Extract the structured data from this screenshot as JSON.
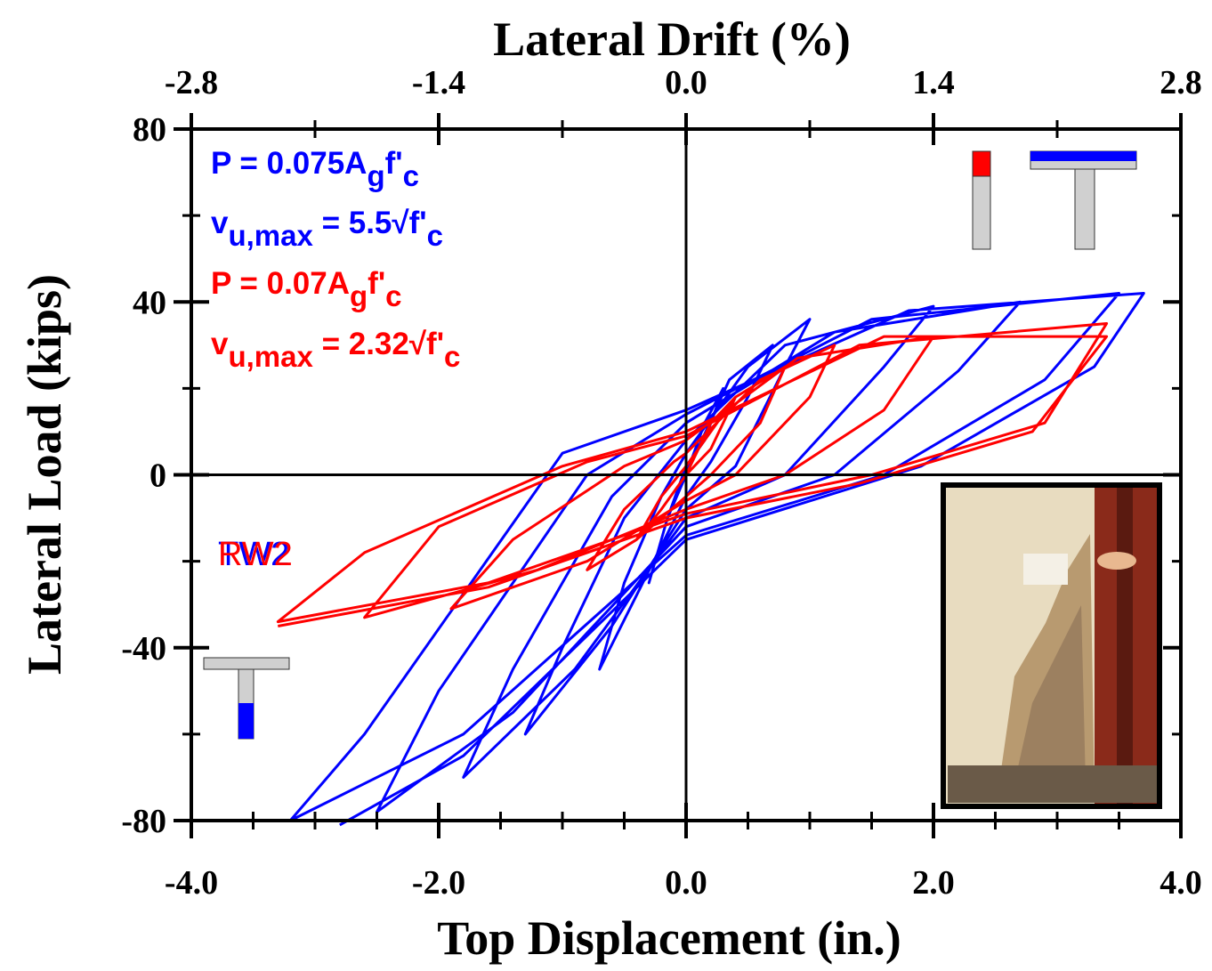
{
  "chart_data": {
    "type": "line",
    "title": "Lateral Drift (%)",
    "xlabel": "Top Displacement (in.)",
    "ylabel": "Lateral Load (kips)",
    "xlim": [
      -4,
      4
    ],
    "xticks": [
      {
        "value": -4,
        "label": "-4.0"
      },
      {
        "value": -2,
        "label": "-2.0"
      },
      {
        "value": 0,
        "label": "0.0"
      },
      {
        "value": 2,
        "label": "2.0"
      },
      {
        "value": 4,
        "label": "4.0"
      }
    ],
    "x2lim": [
      -2.8,
      2.8
    ],
    "x2ticks": [
      -2.8,
      -1.4,
      {
        "value": 0,
        "label": "0.0"
      },
      1.4,
      2.8
    ],
    "ylim": [
      -80,
      80
    ],
    "yticks": [
      -80,
      -40,
      0,
      40,
      80
    ],
    "annotations": [
      {
        "color": "#0000ff",
        "parts": [
          "P = 0.075A",
          "g",
          "f'",
          "c"
        ]
      },
      {
        "color": "#0000ff",
        "parts": [
          "v",
          "u,max",
          " =  5.5√f'",
          "c"
        ]
      },
      {
        "color": "#ff0000",
        "parts": [
          "P = 0.07A",
          "g",
          "f'",
          "c"
        ]
      },
      {
        "color": "#ff0000",
        "parts": [
          "v",
          "u,max",
          " =  2.32√f'",
          "c"
        ]
      }
    ],
    "series": [
      {
        "name": "TW2",
        "color": "#0000ff",
        "x": [
          0,
          0.15,
          0.3,
          0.15,
          0,
          -0.15,
          -0.3,
          -0.15,
          0,
          0.35,
          0.7,
          0.5,
          0.2,
          0,
          -0.35,
          -0.7,
          -0.5,
          -0.2,
          0,
          0.5,
          1.0,
          0.8,
          0.4,
          0,
          -0.6,
          -1.3,
          -1.0,
          -0.5,
          0,
          0.8,
          2.0,
          1.6,
          0.8,
          0,
          -0.9,
          -1.8,
          -1.4,
          -0.6,
          0,
          1.2,
          2.7,
          2.2,
          1.2,
          0,
          -1.4,
          -2.5,
          -2.0,
          -0.8,
          0,
          1.5,
          3.5,
          2.9,
          1.6,
          0,
          -1.8,
          -3.2,
          -2.6,
          -1.0,
          0,
          1.8,
          3.7,
          3.3,
          1.9,
          0,
          -1.8,
          -2.8
        ],
        "values": [
          0,
          12,
          20,
          8,
          2,
          -10,
          -25,
          -10,
          0,
          22,
          30,
          18,
          3,
          -5,
          -25,
          -45,
          -25,
          -5,
          5,
          25,
          36,
          25,
          2,
          -8,
          -35,
          -60,
          -40,
          -10,
          8,
          30,
          39,
          25,
          0,
          -10,
          -45,
          -70,
          -45,
          -5,
          12,
          33,
          40,
          24,
          0,
          -12,
          -55,
          -78,
          -50,
          0,
          14,
          36,
          42,
          22,
          0,
          -14,
          -60,
          -80,
          -60,
          5,
          15,
          38,
          42,
          25,
          2,
          -15,
          -65,
          -81
        ]
      },
      {
        "name": "RW2",
        "color": "#ff0000",
        "x": [
          0,
          0.2,
          0.4,
          0.2,
          0,
          -0.2,
          -0.4,
          -0.2,
          0,
          0.4,
          0.8,
          0.6,
          0.2,
          0,
          -0.4,
          -0.8,
          -0.5,
          -0.1,
          0,
          0.6,
          1.2,
          1.0,
          0.4,
          0,
          -0.8,
          -1.9,
          -1.4,
          -0.5,
          0,
          0.9,
          2.0,
          1.6,
          0.8,
          0,
          -1.2,
          -2.6,
          -2.0,
          -0.8,
          0,
          1.4,
          3.4,
          2.9,
          1.5,
          0,
          -1.6,
          -3.3,
          -2.6,
          -1.0,
          0,
          1.6,
          3.4,
          2.8,
          1.4,
          0,
          -1.6,
          -3.3
        ],
        "values": [
          0,
          12,
          18,
          6,
          0,
          -8,
          -15,
          -5,
          2,
          18,
          25,
          12,
          0,
          -5,
          -15,
          -22,
          -8,
          3,
          5,
          22,
          30,
          18,
          0,
          -6,
          -20,
          -31,
          -15,
          2,
          8,
          27,
          32,
          15,
          0,
          -8,
          -22,
          -33,
          -12,
          3,
          9,
          30,
          35,
          12,
          0,
          -9,
          -25,
          -34,
          -18,
          2,
          10,
          32,
          32,
          10,
          -2,
          -10,
          -26,
          -35
        ]
      }
    ]
  }
}
